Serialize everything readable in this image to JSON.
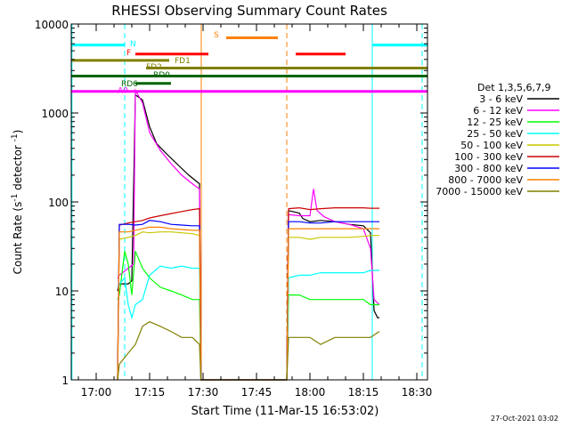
{
  "chart_data": {
    "type": "line",
    "title": "RHESSI Observing Summary Count Rates",
    "xlabel": "Start Time (11-Mar-15 16:53:02)",
    "ylabel_main": "Count Rate (s",
    "ylabel_exp": "-1",
    "ylabel_close": " detector",
    "ylabel_exp2": "-1",
    "y_scale": "log",
    "ylim": [
      1,
      10000
    ],
    "xlim_minutes": [
      0,
      100
    ],
    "x_ticks": [
      {
        "m": 7,
        "label": "17:00"
      },
      {
        "m": 22,
        "label": "17:15"
      },
      {
        "m": 37,
        "label": "17:30"
      },
      {
        "m": 52,
        "label": "17:45"
      },
      {
        "m": 67,
        "label": "18:00"
      },
      {
        "m": 82,
        "label": "18:15"
      },
      {
        "m": 97,
        "label": "18:30"
      }
    ],
    "y_ticks": [
      {
        "v": 1,
        "label": "1"
      },
      {
        "v": 10,
        "label": "10"
      },
      {
        "v": 100,
        "label": "100"
      },
      {
        "v": 1000,
        "label": "1000"
      },
      {
        "v": 10000,
        "label": "10000"
      }
    ],
    "legend_title": "Det 1,3,5,6,7,9",
    "legend_placement": "right",
    "date_stamp": "27-Oct-2021 03:02",
    "series": [
      {
        "name": "3 - 6 keV",
        "color": "#000000",
        "x": [
          13,
          13.5,
          16,
          17,
          18,
          20,
          22,
          24,
          27,
          30,
          33,
          36,
          36.4,
          60.5,
          61,
          64,
          65,
          67,
          70,
          74,
          78,
          82,
          84,
          85,
          86,
          86.5
        ],
        "y": [
          10,
          12,
          12,
          13,
          1600,
          1400,
          700,
          450,
          340,
          260,
          200,
          160,
          1,
          1,
          80,
          75,
          65,
          60,
          62,
          60,
          56,
          54,
          45,
          6,
          5,
          5
        ]
      },
      {
        "name": "6 - 12 keV",
        "color": "#ff00ff",
        "x": [
          13,
          13.5,
          16,
          17.5,
          18,
          20,
          22,
          25,
          28,
          31,
          34,
          36,
          36.4,
          60.5,
          61,
          64,
          67,
          68,
          69,
          71,
          74,
          78,
          82,
          84,
          85,
          86.5
        ],
        "y": [
          14,
          15,
          18,
          20,
          1800,
          1300,
          600,
          380,
          270,
          200,
          160,
          140,
          1,
          1,
          72,
          70,
          70,
          140,
          80,
          68,
          60,
          56,
          50,
          30,
          8,
          7
        ]
      },
      {
        "name": "12 - 25 keV",
        "color": "#00ff00",
        "x": [
          13,
          13.5,
          15,
          16,
          17,
          18,
          20,
          22,
          25,
          28,
          31,
          34,
          36,
          36.4,
          60.5,
          61,
          64,
          67,
          70,
          74,
          78,
          82,
          84,
          86.5
        ],
        "y": [
          8,
          9,
          28,
          20,
          9,
          28,
          18,
          14,
          11,
          10,
          9,
          8,
          8,
          1,
          1,
          9,
          9,
          8,
          8,
          8,
          8,
          8,
          7,
          7
        ]
      },
      {
        "name": "25 - 50 keV",
        "color": "#00ffff",
        "x": [
          13,
          13.5,
          15,
          16,
          17,
          18,
          20,
          22,
          25,
          28,
          31,
          34,
          36,
          36.4,
          60.5,
          61,
          64,
          67,
          70,
          74,
          78,
          82,
          84,
          86.5
        ],
        "y": [
          11,
          12,
          14,
          7,
          5,
          7,
          8,
          15,
          19,
          18,
          19,
          18,
          18,
          1,
          1,
          14,
          15,
          15,
          16,
          16,
          16,
          16,
          17,
          17
        ]
      },
      {
        "name": "50 - 100 keV",
        "color": "#c8c800",
        "x": [
          13,
          13.5,
          16,
          18,
          20,
          22,
          25,
          28,
          31,
          34,
          36,
          36.4,
          60.5,
          61,
          64,
          67,
          70,
          74,
          78,
          82,
          84,
          86.5
        ],
        "y": [
          1,
          38,
          40,
          42,
          46,
          45,
          46,
          46,
          45,
          44,
          42,
          1,
          1,
          40,
          40,
          38,
          40,
          40,
          40,
          41,
          42,
          42
        ]
      },
      {
        "name": "100 - 300 keV",
        "color": "#cc0000",
        "x": [
          13,
          13.5,
          16,
          18,
          20,
          22,
          25,
          28,
          31,
          34,
          36,
          36.4,
          60.5,
          61,
          64,
          67,
          70,
          74,
          78,
          82,
          84,
          86.5
        ],
        "y": [
          1,
          55,
          58,
          60,
          62,
          66,
          70,
          74,
          78,
          82,
          84,
          1,
          1,
          84,
          86,
          82,
          84,
          86,
          86,
          86,
          85,
          85
        ]
      },
      {
        "name": "300 - 800 keV",
        "color": "#0000ff",
        "x": [
          13,
          13.5,
          16,
          18,
          20,
          22,
          25,
          28,
          31,
          34,
          36,
          36.4,
          60.5,
          61,
          64,
          67,
          70,
          74,
          78,
          82,
          84,
          86.5
        ],
        "y": [
          1,
          56,
          56,
          55,
          56,
          62,
          60,
          56,
          55,
          54,
          54,
          1,
          1,
          60,
          60,
          58,
          58,
          60,
          60,
          60,
          60,
          60
        ]
      },
      {
        "name": "800 - 7000 keV",
        "color": "#ff8000",
        "x": [
          13,
          13.5,
          16,
          18,
          20,
          22,
          25,
          28,
          31,
          34,
          36,
          36.4,
          60.5,
          61,
          64,
          67,
          70,
          74,
          78,
          82,
          84,
          86.5
        ],
        "y": [
          1,
          46,
          46,
          48,
          50,
          52,
          52,
          50,
          49,
          48,
          48,
          1,
          1,
          50,
          50,
          50,
          50,
          50,
          50,
          50,
          50,
          50
        ]
      },
      {
        "name": "7000 - 15000 keV",
        "color": "#808000",
        "x": [
          13,
          13.5,
          16,
          18,
          20,
          22,
          25,
          28,
          31,
          34,
          36,
          36.4,
          60.5,
          61,
          64,
          67,
          70,
          74,
          78,
          82,
          84,
          86.5
        ],
        "y": [
          1,
          1.5,
          2,
          2.5,
          4,
          4.5,
          4,
          3.5,
          3,
          3,
          2.5,
          1,
          1,
          3,
          3,
          3,
          2.5,
          3,
          3,
          3,
          3,
          3.5
        ]
      }
    ],
    "vertical_markers": [
      {
        "m": 0.2,
        "color": "#00ffff",
        "dash": false
      },
      {
        "m": 15,
        "color": "#00ffff",
        "dash": true
      },
      {
        "m": 36.5,
        "color": "#ff8000",
        "dash": false
      },
      {
        "m": 60.5,
        "color": "#ff8000",
        "dash": true
      },
      {
        "m": 84.5,
        "color": "#00ffff",
        "dash": false
      },
      {
        "m": 98.5,
        "color": "#00ffff",
        "dash": true
      }
    ],
    "status_bars": [
      {
        "label": "N",
        "color": "#00ffff",
        "segments": [
          [
            0,
            15
          ],
          [
            84.5,
            100
          ]
        ],
        "v": 5800,
        "label_m": 16.5,
        "label_v": 6000
      },
      {
        "label": "S",
        "color": "#ff8000",
        "segments": [
          [
            43.5,
            58
          ]
        ],
        "v": 7000,
        "label_m": 40,
        "label_v": 7600
      },
      {
        "label": "F",
        "color": "#ff0000",
        "segments": [
          [
            18,
            38.5
          ],
          [
            63,
            77
          ]
        ],
        "v": 4600,
        "label_m": 15.5,
        "label_v": 4800
      },
      {
        "label": "FD1",
        "color": "#808000",
        "segments": [
          [
            0,
            27.5
          ]
        ],
        "v": 3900,
        "label_m": 29,
        "label_v": 3900
      },
      {
        "label": "FD2",
        "color": "#808000",
        "segments": [
          [
            21,
            100
          ]
        ],
        "v": 3200,
        "label_m": 21,
        "label_v": 3300
      },
      {
        "label": "RD0",
        "color": "#006400",
        "segments": [
          [
            0,
            100
          ]
        ],
        "v": 2600,
        "label_m": 23,
        "label_v": 2700
      },
      {
        "label": "RD6",
        "color": "#006400",
        "segments": [
          [
            18,
            28
          ]
        ],
        "v": 2150,
        "label_m": 14,
        "label_v": 2150
      },
      {
        "label": "A0",
        "color": "#ff00ff",
        "segments": [
          [
            0,
            100
          ]
        ],
        "v": 1750,
        "label_m": 13,
        "label_v": 1800
      }
    ]
  }
}
